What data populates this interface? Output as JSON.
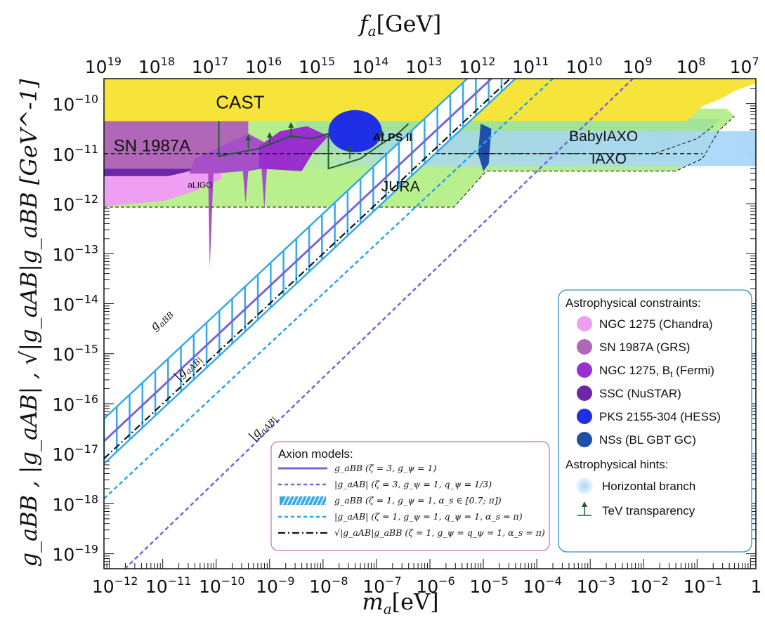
{
  "chart_data": {
    "type": "exclusion-plot",
    "title": "",
    "xlabel": "m_a[eV]",
    "ylabel": "g_aBB , |g_aAB| , √|g_aAB|g_aBB  [GeV^-1]",
    "top_xlabel": "f_a[GeV]",
    "x_scale": "log",
    "y_scale": "log",
    "xlim_log10_eV": [
      -12.1,
      0.1
    ],
    "ylim_log10_GeV": [
      -19.3,
      -9.5
    ],
    "x_tick_labels": [
      {
        "base": "10",
        "exp": "−12",
        "v": -12
      },
      {
        "base": "10",
        "exp": "−11",
        "v": -11
      },
      {
        "base": "10",
        "exp": "−10",
        "v": -10
      },
      {
        "base": "10",
        "exp": "−9",
        "v": -9
      },
      {
        "base": "10",
        "exp": "−8",
        "v": -8
      },
      {
        "base": "10",
        "exp": "−7",
        "v": -7
      },
      {
        "base": "10",
        "exp": "−6",
        "v": -6
      },
      {
        "base": "10",
        "exp": "−5",
        "v": -5
      },
      {
        "base": "10",
        "exp": "−4",
        "v": -4
      },
      {
        "base": "10",
        "exp": "−3",
        "v": -3
      },
      {
        "base": "10",
        "exp": "−2",
        "v": -2
      },
      {
        "base": "10",
        "exp": "−1",
        "v": -1
      },
      {
        "base": "1",
        "exp": "",
        "v": 0
      }
    ],
    "top_tick_labels": [
      {
        "base": "10",
        "exp": "19",
        "v": -12.22
      },
      {
        "base": "10",
        "exp": "18",
        "v": -11.22
      },
      {
        "base": "10",
        "exp": "17",
        "v": -10.22
      },
      {
        "base": "10",
        "exp": "16",
        "v": -9.22
      },
      {
        "base": "10",
        "exp": "15",
        "v": -8.22
      },
      {
        "base": "10",
        "exp": "14",
        "v": -7.22
      },
      {
        "base": "10",
        "exp": "13",
        "v": -6.22
      },
      {
        "base": "10",
        "exp": "12",
        "v": -5.22
      },
      {
        "base": "10",
        "exp": "11",
        "v": -4.22
      },
      {
        "base": "10",
        "exp": "10",
        "v": -3.22
      },
      {
        "base": "10",
        "exp": "9",
        "v": -2.22
      },
      {
        "base": "10",
        "exp": "8",
        "v": -1.22
      },
      {
        "base": "10",
        "exp": "7",
        "v": -0.22
      }
    ],
    "y_tick_labels": [
      {
        "base": "10",
        "exp": "−10",
        "v": -10
      },
      {
        "base": "10",
        "exp": "−11",
        "v": -11
      },
      {
        "base": "10",
        "exp": "−12",
        "v": -12
      },
      {
        "base": "10",
        "exp": "−13",
        "v": -13
      },
      {
        "base": "10",
        "exp": "−14",
        "v": -14
      },
      {
        "base": "10",
        "exp": "−15",
        "v": -15
      },
      {
        "base": "10",
        "exp": "−16",
        "v": -16
      },
      {
        "base": "10",
        "exp": "−17",
        "v": -17
      },
      {
        "base": "10",
        "exp": "−18",
        "v": -18
      },
      {
        "base": "10",
        "exp": "−19",
        "v": -19
      }
    ],
    "regions": [
      {
        "label": "CAST",
        "color": "#f7e43a"
      },
      {
        "label": "SN 1987A",
        "color": "#b067b8"
      },
      {
        "label": "aLIGO",
        "color": "#a64fc9"
      },
      {
        "label": "ALPS II",
        "color": "#0b0b0b"
      },
      {
        "label": "BabyIAXO",
        "color": "#9fe09a"
      },
      {
        "label": "IAXO",
        "color": "#b6ee8f"
      },
      {
        "label": "JURA",
        "color": "#b9f08e"
      }
    ],
    "lines": [
      {
        "label": "g_aBB",
        "style": "band-hatched",
        "color": "#35a9e8"
      },
      {
        "label": "|g_aAB|",
        "style": "dashed",
        "color": "#2aa3ea"
      },
      {
        "label": "|g_aAB|",
        "style": "dashed",
        "color": "#7a63d8"
      }
    ],
    "legend_astro": {
      "title": "Astrophysical constraints:",
      "items": [
        {
          "label": "NGC 1275 (Chandra)",
          "color": "#ef9ff2"
        },
        {
          "label": "SN 1987A (GRS)",
          "color": "#b067b8"
        },
        {
          "label": "NGC 1275, B",
          "sub": "t",
          "after": " (Fermi)",
          "color": "#9a2fcf"
        },
        {
          "label": "SSC (NuSTAR)",
          "color": "#6b27a8"
        },
        {
          "label": "PKS 2155-304 (HESS)",
          "color": "#1e2fe6"
        },
        {
          "label": "NSs (BL GBT GC)",
          "color": "#1f4fa8"
        }
      ],
      "hints_title": "Astrophysical hints:",
      "hints": [
        {
          "label": "Horizontal branch",
          "color": "#a9d6f7"
        },
        {
          "label": "TeV transparency",
          "color": "#1b5e2a"
        }
      ]
    },
    "legend_models": {
      "title": "Axion models:",
      "items": [
        {
          "label": "g_aBB (ζ = 3, g_ψ = 1)",
          "style": "solid",
          "color": "#7a63d8"
        },
        {
          "label": "|g_aAB| (ζ = 3, g_ψ = 1, q_ψ = 1/3)",
          "style": "dashed",
          "color": "#7a63d8"
        },
        {
          "label": "g_aBB (ζ = 1, g_ψ = 1, α_s ∈ [0.7; π])",
          "style": "hatched",
          "color": "#35a9e8"
        },
        {
          "label": "|g_aAB| (ζ = 1, g_ψ = 1, q_ψ = 1, α_s = π)",
          "style": "dashed",
          "color": "#2aa3ea"
        },
        {
          "label": "√|g_aAB|g_aBB (ζ = 1, g_ψ = q_ψ = 1, α_s = π)",
          "style": "dashdot",
          "color": "#111111"
        }
      ]
    },
    "curve_labels": [
      "g_aBB",
      "|g_aAB|",
      "|g_aAB|"
    ]
  }
}
